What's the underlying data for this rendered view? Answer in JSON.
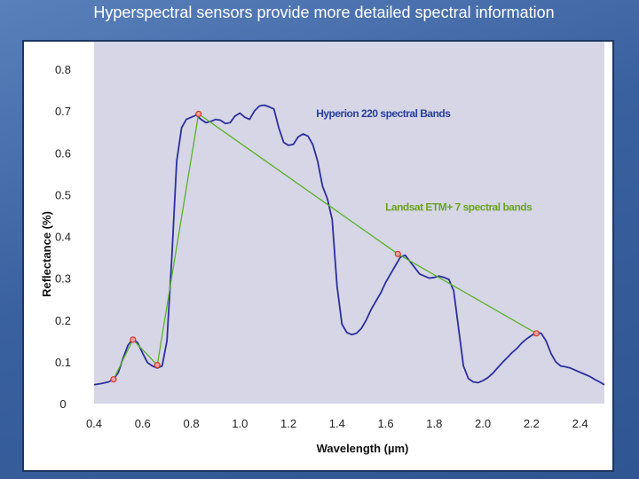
{
  "slide": {
    "title": "Hyperspectral sensors provide more detailed spectral information"
  },
  "chart_data": {
    "type": "line",
    "title": "",
    "xlabel": "Wavelength (µm)",
    "ylabel": "Reflectance (%)",
    "xlim": [
      0.4,
      2.5
    ],
    "ylim": [
      0,
      0.8
    ],
    "x_ticks": [
      "0.4",
      "0.6",
      "0.8",
      "1.0",
      "1.2",
      "1.4",
      "1.6",
      "1.8",
      "2.0",
      "2.2",
      "2.4"
    ],
    "x_tick_values": [
      0.4,
      0.6,
      0.8,
      1.0,
      1.2,
      1.4,
      1.6,
      1.8,
      2.0,
      2.2,
      2.4
    ],
    "y_ticks": [
      "0",
      "0.1",
      "0.2",
      "0.3",
      "0.4",
      "0.5",
      "0.6",
      "0.7",
      "0.8"
    ],
    "y_tick_values": [
      0,
      0.1,
      0.2,
      0.3,
      0.4,
      0.5,
      0.6,
      0.7,
      0.8
    ],
    "plot_background": "#d6d6e6",
    "series": [
      {
        "name": "Hyperion 220 spectral Bands",
        "color": "#2b2f9e",
        "x": [
          0.4,
          0.43,
          0.46,
          0.48,
          0.5,
          0.52,
          0.54,
          0.56,
          0.58,
          0.6,
          0.62,
          0.64,
          0.66,
          0.68,
          0.7,
          0.72,
          0.74,
          0.76,
          0.78,
          0.8,
          0.82,
          0.84,
          0.86,
          0.88,
          0.9,
          0.92,
          0.94,
          0.96,
          0.98,
          1.0,
          1.02,
          1.04,
          1.06,
          1.08,
          1.1,
          1.12,
          1.14,
          1.16,
          1.18,
          1.2,
          1.22,
          1.24,
          1.26,
          1.28,
          1.3,
          1.32,
          1.34,
          1.36,
          1.38,
          1.4,
          1.42,
          1.44,
          1.46,
          1.48,
          1.5,
          1.52,
          1.54,
          1.56,
          1.58,
          1.6,
          1.62,
          1.64,
          1.66,
          1.68,
          1.7,
          1.72,
          1.74,
          1.76,
          1.78,
          1.8,
          1.82,
          1.84,
          1.86,
          1.88,
          1.9,
          1.92,
          1.94,
          1.96,
          1.98,
          2.0,
          2.02,
          2.04,
          2.06,
          2.08,
          2.1,
          2.12,
          2.14,
          2.16,
          2.18,
          2.2,
          2.22,
          2.24,
          2.26,
          2.28,
          2.3,
          2.32,
          2.34,
          2.36,
          2.38,
          2.4,
          2.42,
          2.44,
          2.46,
          2.48,
          2.5
        ],
        "y": [
          0.045,
          0.048,
          0.052,
          0.058,
          0.075,
          0.11,
          0.14,
          0.155,
          0.145,
          0.12,
          0.098,
          0.09,
          0.085,
          0.09,
          0.15,
          0.35,
          0.58,
          0.66,
          0.68,
          0.685,
          0.69,
          0.68,
          0.672,
          0.675,
          0.68,
          0.678,
          0.67,
          0.672,
          0.688,
          0.695,
          0.685,
          0.68,
          0.7,
          0.712,
          0.714,
          0.71,
          0.705,
          0.66,
          0.625,
          0.618,
          0.62,
          0.638,
          0.645,
          0.64,
          0.62,
          0.58,
          0.52,
          0.49,
          0.44,
          0.28,
          0.19,
          0.17,
          0.165,
          0.168,
          0.18,
          0.2,
          0.225,
          0.245,
          0.265,
          0.29,
          0.31,
          0.33,
          0.35,
          0.355,
          0.34,
          0.325,
          0.31,
          0.305,
          0.3,
          0.302,
          0.305,
          0.302,
          0.297,
          0.27,
          0.18,
          0.09,
          0.06,
          0.052,
          0.05,
          0.055,
          0.062,
          0.072,
          0.085,
          0.098,
          0.11,
          0.122,
          0.132,
          0.145,
          0.155,
          0.163,
          0.17,
          0.168,
          0.15,
          0.12,
          0.1,
          0.09,
          0.088,
          0.085,
          0.08,
          0.075,
          0.07,
          0.065,
          0.058,
          0.052,
          0.045
        ]
      },
      {
        "name": "Landsat ETM+ 7 spectral bands",
        "color": "#5bb12a",
        "x": [
          0.48,
          0.56,
          0.66,
          0.83,
          1.65,
          2.22
        ],
        "y": [
          0.058,
          0.153,
          0.092,
          0.693,
          0.358,
          0.168
        ]
      }
    ],
    "annotations": [
      {
        "text": "Hyperion 220 spectral Bands",
        "x": 1.59,
        "y": 0.685,
        "color": "#2a3f9a"
      },
      {
        "text": "Landsat ETM+ 7 spectral bands",
        "x": 1.9,
        "y": 0.462,
        "color": "#6aa51d"
      }
    ]
  }
}
